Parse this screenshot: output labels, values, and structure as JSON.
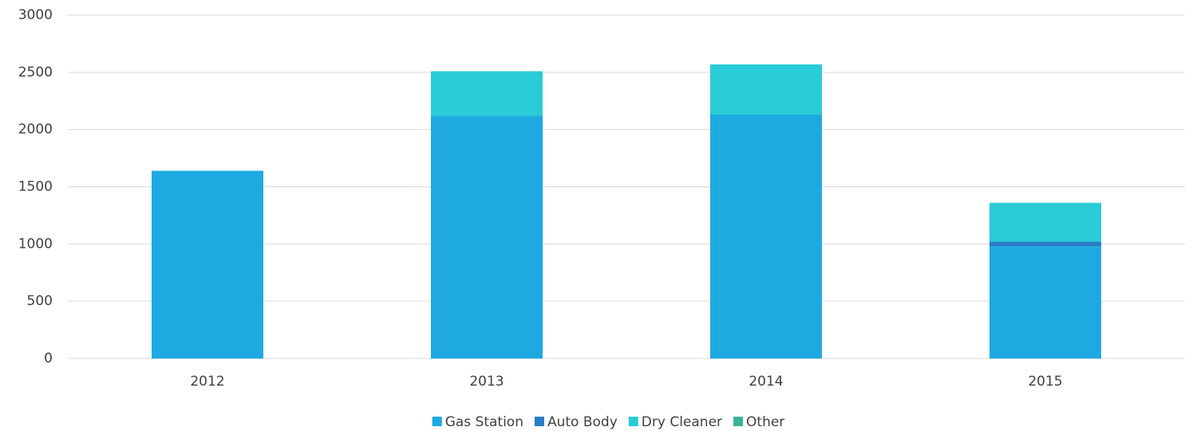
{
  "chart_data": {
    "type": "stacked_bar",
    "categories": [
      "2012",
      "2013",
      "2014",
      "2015"
    ],
    "series": [
      {
        "name": "Gas Station",
        "color": "#1eaae1",
        "values": [
          1640,
          2120,
          2130,
          980
        ]
      },
      {
        "name": "Auto Body",
        "color": "#2a7cc6",
        "values": [
          0,
          0,
          0,
          40
        ]
      },
      {
        "name": "Dry Cleaner",
        "color": "#29ccd6",
        "values": [
          0,
          390,
          440,
          340
        ]
      },
      {
        "name": "Other",
        "color": "#3bb39a",
        "values": [
          0,
          0,
          0,
          0
        ]
      }
    ],
    "ylim": [
      0,
      3000
    ],
    "yticks": [
      0,
      500,
      1000,
      1500,
      2000,
      2500,
      3000
    ],
    "grid": true,
    "legend": "bottom"
  }
}
